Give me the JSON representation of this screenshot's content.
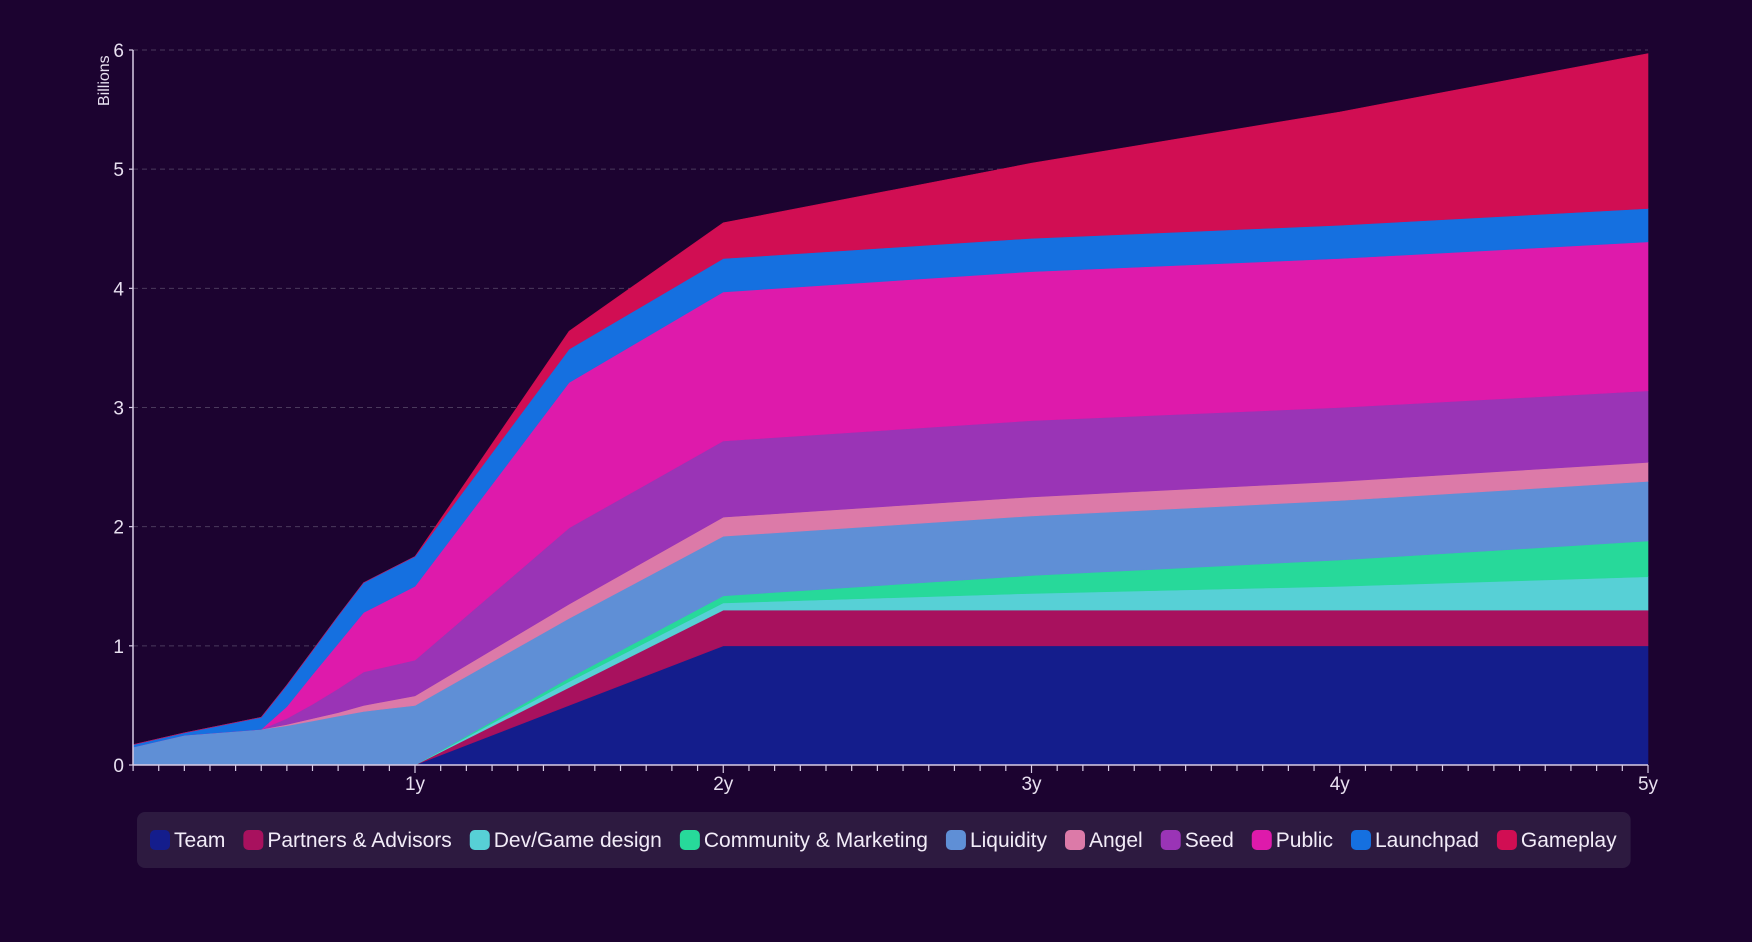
{
  "chart_data": {
    "type": "area",
    "stacked": true,
    "ylabel": "Billions",
    "ylim": [
      0,
      6
    ],
    "y_ticks": [
      "0",
      "1",
      "2",
      "3",
      "4",
      "5",
      "6"
    ],
    "x_ticks": [
      {
        "value": 1,
        "label": "1y"
      },
      {
        "value": 2,
        "label": "2y"
      },
      {
        "value": 3,
        "label": "3y"
      },
      {
        "value": 4,
        "label": "4y"
      },
      {
        "value": 5,
        "label": "5y"
      }
    ],
    "x_range": [
      0.083,
      5
    ],
    "grid": true,
    "legend_position": "bottom",
    "x": [
      0.083,
      0.25,
      0.5,
      0.583,
      0.667,
      0.75,
      0.833,
      1.0,
      1.5,
      2.0,
      3.0,
      4.0,
      5.0
    ],
    "series": [
      {
        "name": "Team",
        "color": "#141d8c",
        "values": [
          0,
          0,
          0,
          0,
          0,
          0,
          0,
          0,
          0.5,
          1.0,
          1.0,
          1.0,
          1.0
        ]
      },
      {
        "name": "Partners & Advisors",
        "color": "#a8115e",
        "values": [
          0,
          0,
          0,
          0,
          0,
          0,
          0,
          0,
          0.15,
          0.3,
          0.3,
          0.3,
          0.3
        ]
      },
      {
        "name": "Dev/Game design",
        "color": "#57d0d6",
        "values": [
          0,
          0,
          0,
          0,
          0,
          0,
          0,
          0,
          0.05,
          0.06,
          0.14,
          0.2,
          0.28
        ]
      },
      {
        "name": "Community & Marketing",
        "color": "#27d99a",
        "values": [
          0,
          0,
          0,
          0,
          0,
          0,
          0,
          0,
          0.03,
          0.06,
          0.15,
          0.22,
          0.3
        ]
      },
      {
        "name": "Liquidity",
        "color": "#5f8fd6",
        "values": [
          0.15,
          0.25,
          0.3,
          0.33,
          0.37,
          0.41,
          0.45,
          0.5,
          0.5,
          0.5,
          0.5,
          0.5,
          0.5
        ]
      },
      {
        "name": "Angel",
        "color": "#dc7aa8",
        "values": [
          0,
          0,
          0,
          0.01,
          0.02,
          0.03,
          0.05,
          0.08,
          0.12,
          0.16,
          0.16,
          0.16,
          0.16
        ]
      },
      {
        "name": "Seed",
        "color": "#9a34b6",
        "values": [
          0,
          0,
          0,
          0.05,
          0.12,
          0.2,
          0.28,
          0.3,
          0.64,
          0.64,
          0.64,
          0.62,
          0.6
        ]
      },
      {
        "name": "Public",
        "color": "#de1aab",
        "values": [
          0,
          0,
          0,
          0.1,
          0.25,
          0.38,
          0.5,
          0.62,
          1.22,
          1.25,
          1.25,
          1.25,
          1.25
        ]
      },
      {
        "name": "Launchpad",
        "color": "#1570e0",
        "values": [
          0.02,
          0.02,
          0.1,
          0.18,
          0.2,
          0.23,
          0.25,
          0.25,
          0.28,
          0.28,
          0.28,
          0.28,
          0.28
        ]
      },
      {
        "name": "Gameplay",
        "color": "#d10e53",
        "values": [
          0,
          0,
          0,
          0,
          0,
          0,
          0,
          0,
          0.15,
          0.3,
          0.63,
          0.95,
          1.3
        ]
      }
    ]
  },
  "colors": {
    "background": "#1c0330",
    "grid": "#4a3a5c",
    "axis": "#d8cce6",
    "legend_box": "#2d1a40"
  }
}
